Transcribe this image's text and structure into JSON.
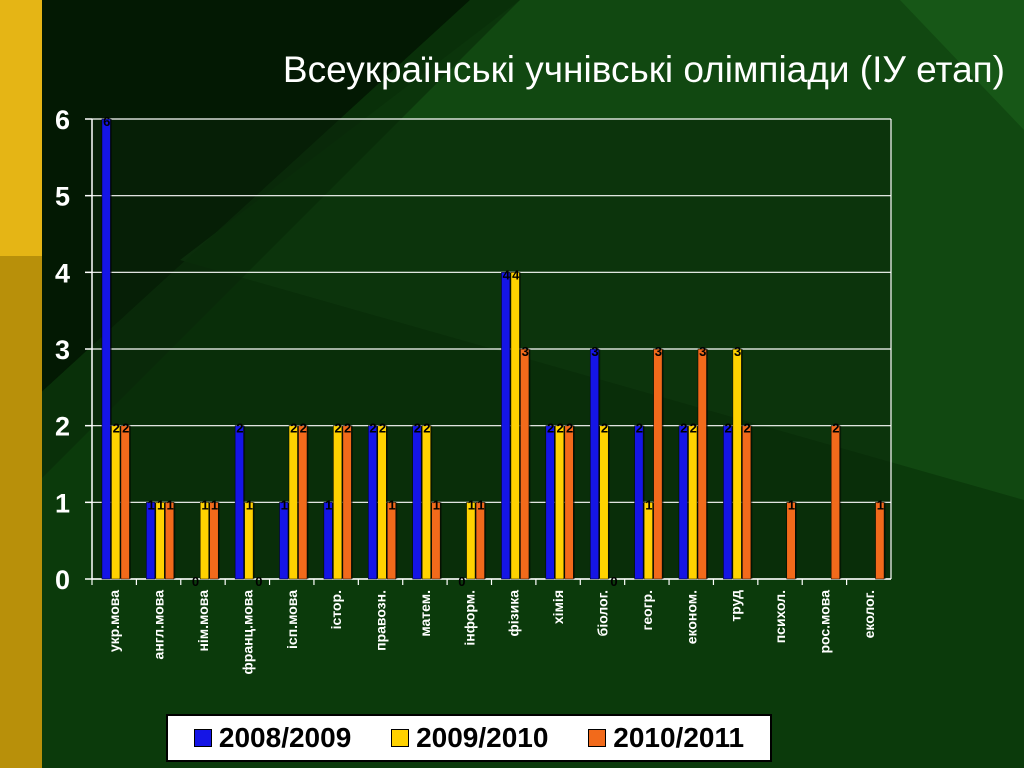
{
  "slide": {
    "title": "Всеукраїнські учнівські олімпіади (ІУ етап)"
  },
  "colors": {
    "background": "#0b3a0b",
    "accent_gold": "#c9a10a",
    "plot_area": "#0a240a"
  },
  "chart_data": {
    "type": "bar",
    "title": "Всеукраїнські учнівські олімпіади (ІУ етап)",
    "xlabel": "",
    "ylabel": "",
    "ylim": [
      0,
      6
    ],
    "yticks": [
      "0",
      "1",
      "2",
      "3",
      "4",
      "5",
      "6"
    ],
    "grid": true,
    "legend_position": "bottom",
    "categories": [
      "укр.мова",
      "англ.мова",
      "нім.мова",
      "франц.мова",
      "ісп.мова",
      "істор.",
      "правозн.",
      "матем.",
      "інформ.",
      "фізика",
      "хімія",
      "біолог.",
      "геогр.",
      "економ.",
      "труд",
      "психол.",
      "рос.мова",
      "еколог."
    ],
    "series": [
      {
        "name": "2008/2009",
        "color": "#1515e6",
        "values": [
          6,
          1,
          0,
          2,
          1,
          1,
          2,
          2,
          0,
          4,
          2,
          3,
          2,
          2,
          2,
          0,
          0,
          0
        ],
        "labels": [
          "6",
          "1",
          "0",
          "2",
          "1",
          "1",
          "2",
          "2",
          "0",
          "4",
          "2",
          "3",
          "2",
          "2",
          "2",
          "",
          "",
          ""
        ]
      },
      {
        "name": "2009/2010",
        "color": "#ffd200",
        "values": [
          2,
          1,
          1,
          1,
          2,
          2,
          2,
          2,
          1,
          4,
          2,
          2,
          1,
          2,
          3,
          0,
          0,
          0
        ],
        "labels": [
          "2",
          "1",
          "1",
          "1",
          "2",
          "2",
          "2",
          "2",
          "1",
          "4",
          "2",
          "2",
          "1",
          "2",
          "3",
          "",
          "",
          ""
        ]
      },
      {
        "name": "2010/2011",
        "color": "#f26a1b",
        "values": [
          2,
          1,
          1,
          0,
          2,
          2,
          1,
          1,
          1,
          3,
          2,
          0,
          3,
          3,
          2,
          1,
          2,
          1
        ],
        "labels": [
          "2",
          "1",
          "1",
          "0",
          "2",
          "2",
          "1",
          "1",
          "1",
          "3",
          "2",
          "0",
          "3",
          "3",
          "2",
          "1",
          "2",
          "1"
        ]
      }
    ]
  }
}
